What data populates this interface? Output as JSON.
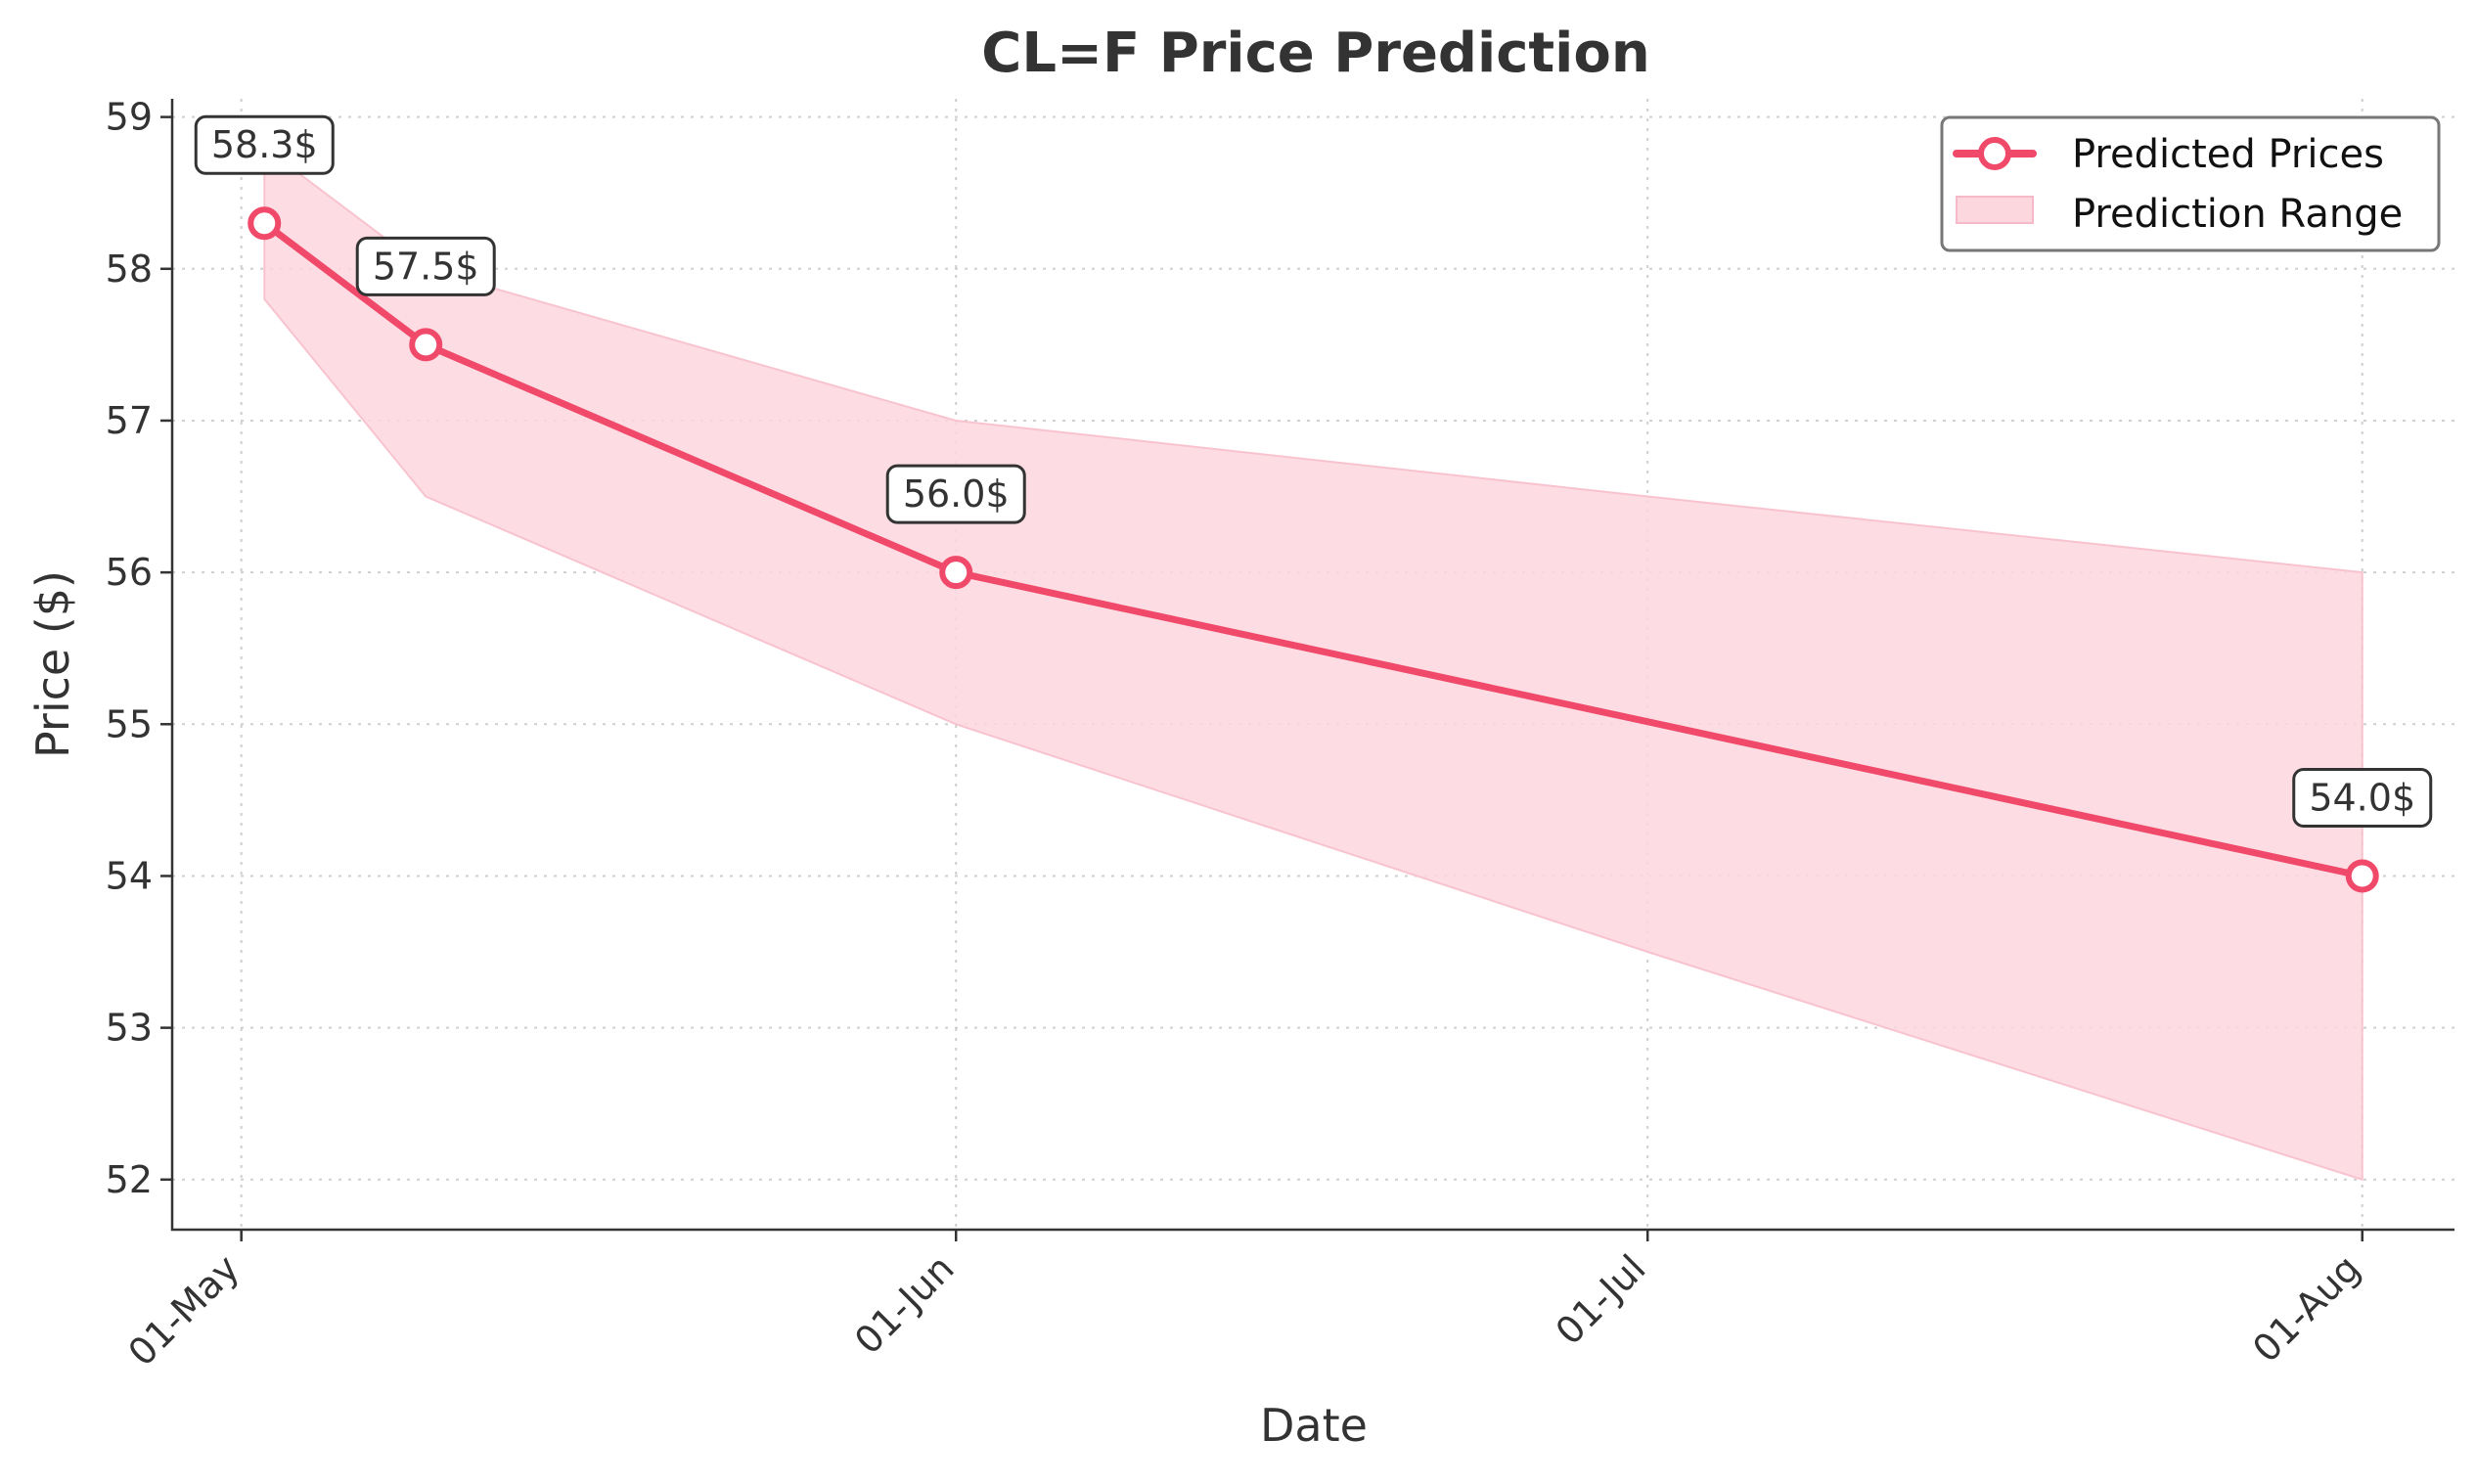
{
  "chart_data": {
    "type": "line",
    "title": "CL=F Price Prediction",
    "xlabel": "Date",
    "ylabel": "Price ($)",
    "x_ticks": [
      "01-May",
      "01-Jun",
      "01-Jul",
      "01-Aug"
    ],
    "y_ticks": [
      "52",
      "53",
      "54",
      "55",
      "56",
      "57",
      "58",
      "59"
    ],
    "ylim": [
      51.67,
      59.12
    ],
    "xlim": [
      "2025-04-28",
      "2025-08-05"
    ],
    "series": [
      {
        "name": "Predicted Prices",
        "color": "#f0496a",
        "x": [
          "2025-05-02",
          "2025-05-09",
          "2025-06-01",
          "2025-08-01"
        ],
        "values": [
          58.3,
          57.5,
          56.0,
          54.0
        ]
      }
    ],
    "range": {
      "name": "Prediction Range",
      "color": "#fdd7de",
      "x": [
        "2025-05-02",
        "2025-05-09",
        "2025-06-01",
        "2025-07-01",
        "2025-08-01"
      ],
      "upper": [
        58.8,
        58.0,
        57.0,
        56.5,
        56.0
      ],
      "lower": [
        57.8,
        56.5,
        55.0,
        53.5,
        52.0
      ]
    },
    "data_labels": [
      "58.3$",
      "57.5$",
      "56.0$",
      "54.0$"
    ],
    "legend": {
      "position": "top-right",
      "items": [
        "Predicted Prices",
        "Prediction Range"
      ]
    },
    "grid": true
  }
}
